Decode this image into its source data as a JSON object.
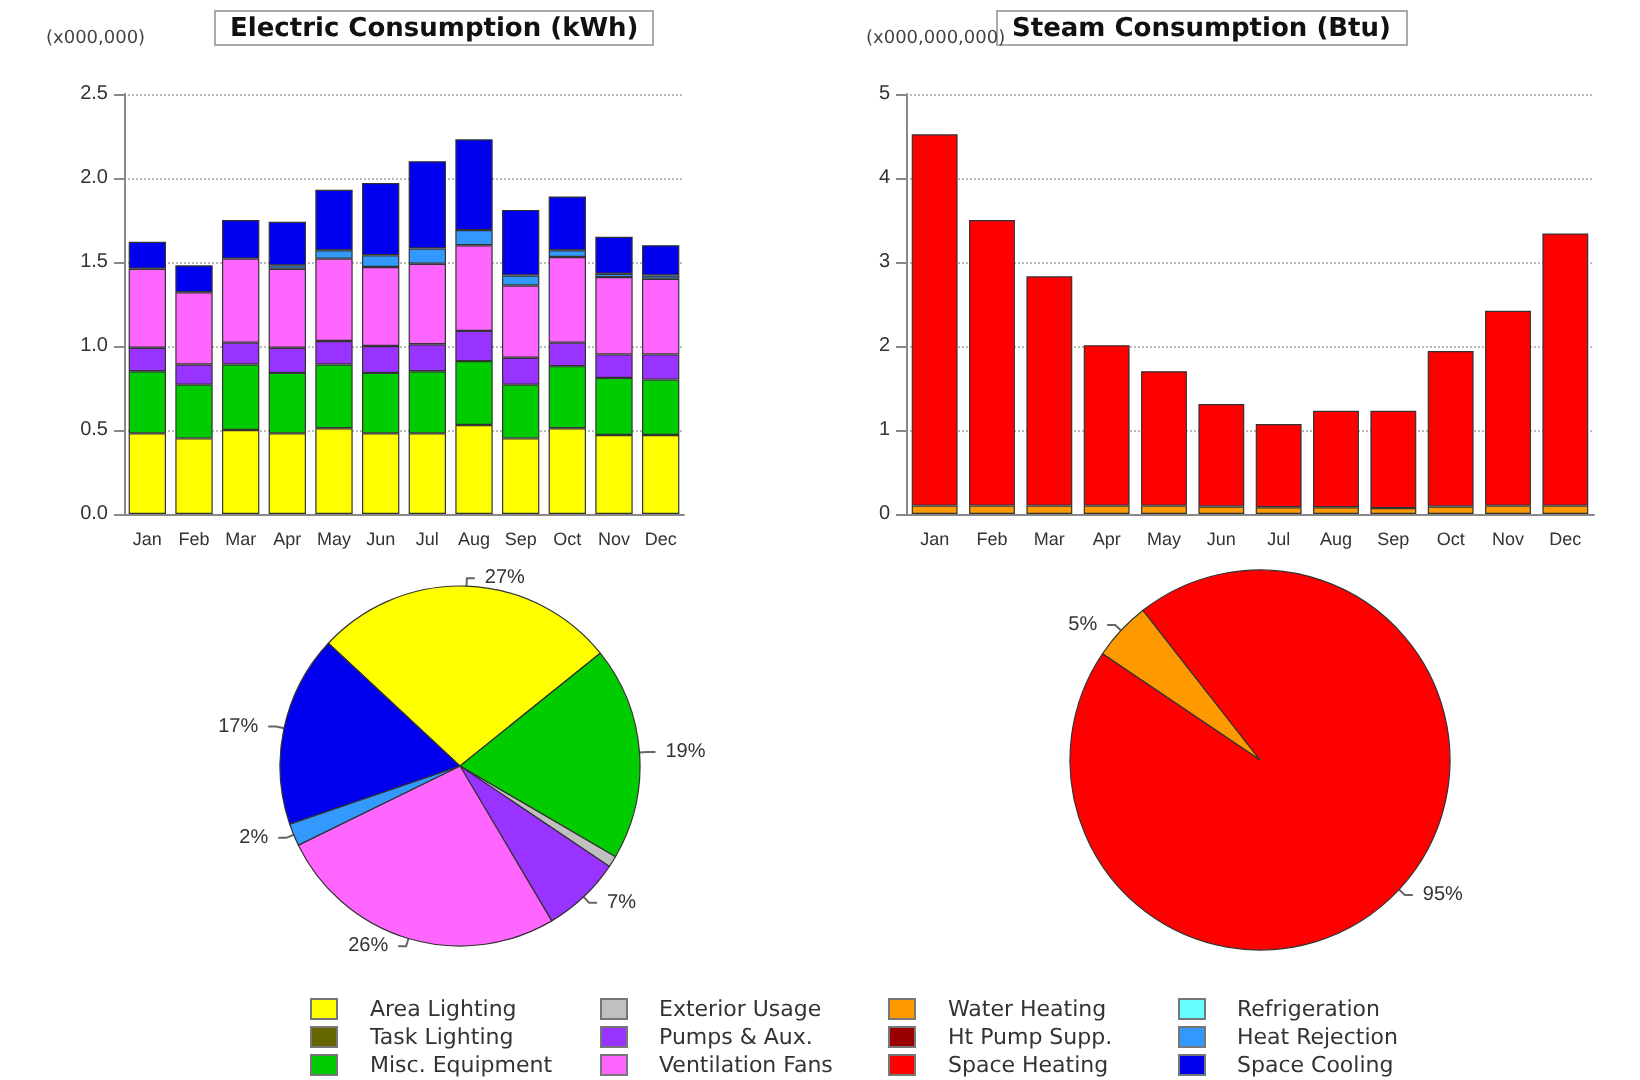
{
  "chart_data": [
    {
      "type": "bar",
      "title": "Electric Consumption (kWh)",
      "ylabel": "(x000,000)",
      "stacked": true,
      "grid": "y",
      "legend": "bottom",
      "categories": [
        "Jan",
        "Feb",
        "Mar",
        "Apr",
        "May",
        "Jun",
        "Jul",
        "Aug",
        "Sep",
        "Oct",
        "Nov",
        "Dec"
      ],
      "ylim": [
        0,
        2.5
      ],
      "yticks": [
        {
          "value": 0,
          "label": "0.0"
        },
        {
          "value": 0.5,
          "label": "0.5"
        },
        {
          "value": 1,
          "label": "1.0"
        },
        {
          "value": 1.5,
          "label": "1.5"
        },
        {
          "value": 2,
          "label": "2.0"
        },
        {
          "value": 2.5,
          "label": "2.5"
        }
      ],
      "series": [
        {
          "name": "Area Lighting",
          "color": "#ffff00",
          "values": [
            0.48,
            0.45,
            0.5,
            0.48,
            0.51,
            0.48,
            0.48,
            0.53,
            0.45,
            0.51,
            0.47,
            0.47
          ]
        },
        {
          "name": "Task Lighting",
          "color": "#666600",
          "values": [
            0,
            0,
            0,
            0,
            0,
            0,
            0,
            0,
            0,
            0,
            0,
            0
          ]
        },
        {
          "name": "Misc. Equipment",
          "color": "#00cc00",
          "values": [
            0.37,
            0.32,
            0.39,
            0.36,
            0.38,
            0.36,
            0.37,
            0.38,
            0.32,
            0.37,
            0.34,
            0.33
          ]
        },
        {
          "name": "Exterior Usage",
          "color": "#c0c0c0",
          "values": [
            0,
            0,
            0,
            0,
            0,
            0,
            0,
            0,
            0,
            0,
            0,
            0
          ]
        },
        {
          "name": "Pumps & Aux.",
          "color": "#9933ff",
          "values": [
            0.14,
            0.12,
            0.13,
            0.15,
            0.14,
            0.16,
            0.16,
            0.18,
            0.16,
            0.14,
            0.14,
            0.15
          ]
        },
        {
          "name": "Ventilation Fans",
          "color": "#ff66ff",
          "values": [
            0.47,
            0.43,
            0.5,
            0.47,
            0.49,
            0.47,
            0.48,
            0.51,
            0.43,
            0.51,
            0.46,
            0.45
          ]
        },
        {
          "name": "Refrigeration",
          "color": "#66ffff",
          "values": [
            0,
            0,
            0,
            0,
            0,
            0,
            0,
            0,
            0,
            0,
            0,
            0
          ]
        },
        {
          "name": "Heat Rejection",
          "color": "#3399ff",
          "values": [
            null,
            null,
            null,
            0.02,
            0.05,
            0.07,
            0.09,
            0.09,
            0.06,
            0.04,
            0.02,
            0.02
          ]
        },
        {
          "name": "Space Cooling",
          "color": "#0000ee",
          "values": [
            0.16,
            0.16,
            0.23,
            0.26,
            0.36,
            0.43,
            0.52,
            0.54,
            0.39,
            0.32,
            0.22,
            0.18
          ]
        }
      ]
    },
    {
      "type": "bar",
      "title": "Steam Consumption (Btu)",
      "ylabel": "(x000,000,000)",
      "stacked": true,
      "grid": "y",
      "legend": "bottom",
      "categories": [
        "Jan",
        "Feb",
        "Mar",
        "Apr",
        "May",
        "Jun",
        "Jul",
        "Aug",
        "Sep",
        "Oct",
        "Nov",
        "Dec"
      ],
      "ylim": [
        0,
        5
      ],
      "yticks": [
        0,
        1,
        2,
        3,
        4,
        5
      ],
      "series": [
        {
          "name": "Water Heating",
          "color": "#ff9900",
          "values": [
            0.1,
            0.1,
            0.1,
            0.1,
            0.1,
            0.09,
            0.08,
            0.08,
            0.07,
            0.09,
            0.1,
            0.1
          ]
        },
        {
          "name": "Ht Pump Supp.",
          "color": "#990000",
          "values": [
            0,
            0,
            0,
            0,
            0,
            0,
            0,
            0,
            0,
            0,
            0,
            0
          ]
        },
        {
          "name": "Space Heating",
          "color": "#ff0000",
          "values": [
            4.42,
            3.4,
            2.73,
            1.91,
            1.6,
            1.22,
            0.99,
            1.15,
            1.16,
            1.85,
            2.32,
            3.24
          ]
        }
      ]
    },
    {
      "type": "pie",
      "categories": [
        null,
        null,
        null,
        null,
        null,
        null,
        null
      ],
      "values": [
        27,
        19,
        1,
        7,
        26,
        2,
        17
      ],
      "colors": [
        "#ffff00",
        "#00cc00",
        "#c0c0c0",
        "#9933ff",
        "#ff66ff",
        "#3399ff",
        "#0000ee"
      ],
      "value_labels": [
        "27%",
        "19%",
        null,
        "7%",
        "26%",
        "2%",
        "17%"
      ]
    },
    {
      "type": "pie",
      "categories": [
        null,
        null
      ],
      "values": [
        5,
        95
      ],
      "colors": [
        "#ff9900",
        "#ff0000"
      ],
      "value_labels": [
        "5%",
        "95%"
      ]
    }
  ]
}
